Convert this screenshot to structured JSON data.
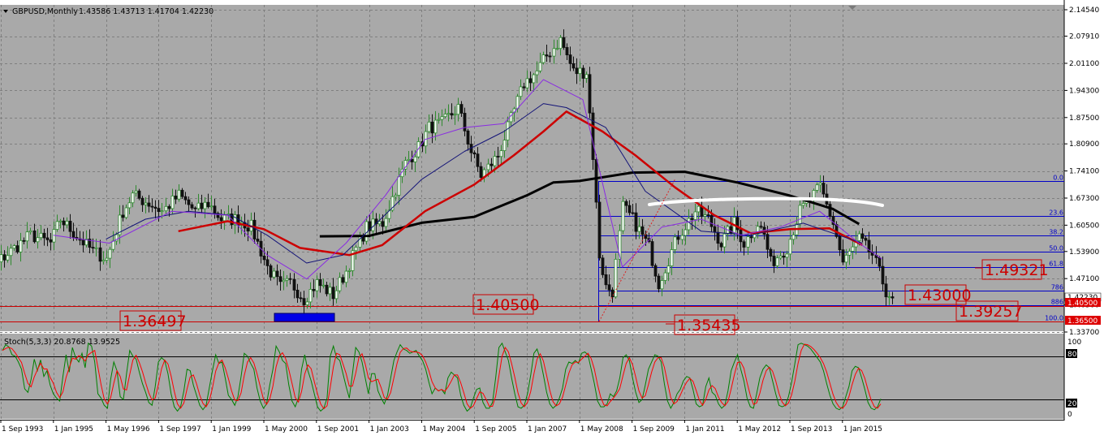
{
  "header": {
    "symbol": "GBPUSD,Monthly",
    "ohlc": "1.43586 1.43713 1.41704 1.42230",
    "stoch_label": "Stoch(5,3,3) 20.8768 13.9525"
  },
  "colors": {
    "background": "#a9a9a9",
    "grid": "#7f7f7f",
    "bull_candle": "#2f8a2f",
    "bear_candle": "#111111",
    "fib_line": "#0000c8",
    "ma_black": "#000000",
    "ma_red": "#cc0000",
    "ma_navy": "#141478",
    "ma_violet": "#8a2be2",
    "support_line": "#cc0000",
    "stoch_main": "#008000",
    "stoch_signal": "#ff0000"
  },
  "chart_data": [
    {
      "type": "candlestick",
      "symbol": "GBPUSD",
      "timeframe": "Monthly",
      "ylim": [
        1.337,
        2.1454
      ],
      "price_ticks": [
        "2.14540",
        "2.07910",
        "2.01100",
        "1.94300",
        "1.87500",
        "1.80900",
        "1.74100",
        "1.67300",
        "1.60500",
        "1.53900",
        "1.47100",
        "1.40500",
        "1.33700"
      ],
      "x_ticks": [
        "1 Sep 1993",
        "1 Jan 1995",
        "1 May 1996",
        "1 Sep 1997",
        "1 Jan 1999",
        "1 May 2000",
        "1 Sep 2001",
        "1 Jan 2003",
        "1 May 2004",
        "1 Sep 2005",
        "1 Jan 2007",
        "1 May 2008",
        "1 Sep 2009",
        "1 Jan 2011",
        "1 May 2012",
        "1 Sep 2013",
        "1 Jan 2015"
      ],
      "current_price": "1.42230",
      "price_tags": [
        "1.40500",
        "1.36500"
      ],
      "fib_levels": [
        {
          "label": "0.0",
          "price": 1.716
        },
        {
          "label": "23.6",
          "price": 1.6285
        },
        {
          "label": "38.2",
          "price": 1.5795
        },
        {
          "label": "50.0",
          "price": 1.5395
        },
        {
          "label": "61.8",
          "price": 1.4995
        },
        {
          "label": "786",
          "price": 1.4402
        },
        {
          "label": "886",
          "price": 1.4045
        },
        {
          "label": "100.0",
          "price": 1.3625
        }
      ],
      "annotations": [
        "1.49321",
        "1.43000",
        "1.39257",
        "1.35435",
        "1.40500",
        "1.36497"
      ],
      "support_lines": [
        1.4016,
        1.3638
      ],
      "series": [
        {
          "kind": "ohlc",
          "anchors_date_price": [
            [
              "1992-09",
              1.48
            ],
            [
              "1992-12",
              1.52
            ],
            [
              "1993-03",
              1.45
            ],
            [
              "1993-09",
              1.52
            ],
            [
              "1994-06",
              1.58
            ],
            [
              "1994-12",
              1.56
            ],
            [
              "1995-03",
              1.62
            ],
            [
              "1995-09",
              1.57
            ],
            [
              "1996-01",
              1.54
            ],
            [
              "1996-05",
              1.52
            ],
            [
              "1996-10",
              1.64
            ],
            [
              "1997-01",
              1.68
            ],
            [
              "1997-06",
              1.66
            ],
            [
              "1997-10",
              1.64
            ],
            [
              "1998-03",
              1.68
            ],
            [
              "1998-08",
              1.64
            ],
            [
              "1998-12",
              1.66
            ],
            [
              "1999-04",
              1.62
            ],
            [
              "1999-09",
              1.62
            ],
            [
              "2000-01",
              1.6
            ],
            [
              "2000-06",
              1.5
            ],
            [
              "2000-10",
              1.45
            ],
            [
              "2001-01",
              1.46
            ],
            [
              "2001-05",
              1.42
            ],
            [
              "2001-09",
              1.46
            ],
            [
              "2002-02",
              1.43
            ],
            [
              "2002-06",
              1.49
            ],
            [
              "2002-12",
              1.6
            ],
            [
              "2003-05",
              1.61
            ],
            [
              "2003-12",
              1.76
            ],
            [
              "2004-04",
              1.8
            ],
            [
              "2004-07",
              1.85
            ],
            [
              "2004-11",
              1.86
            ],
            [
              "2005-04",
              1.9
            ],
            [
              "2005-08",
              1.79
            ],
            [
              "2005-11",
              1.73
            ],
            [
              "2006-04",
              1.78
            ],
            [
              "2006-08",
              1.87
            ],
            [
              "2006-12",
              1.96
            ],
            [
              "2007-04",
              1.99
            ],
            [
              "2007-07",
              2.03
            ],
            [
              "2007-11",
              2.07
            ],
            [
              "2008-03",
              1.99
            ],
            [
              "2008-07",
              1.99
            ],
            [
              "2008-09",
              1.78
            ],
            [
              "2008-11",
              1.53
            ],
            [
              "2009-01",
              1.45
            ],
            [
              "2009-03",
              1.44
            ],
            [
              "2009-06",
              1.65
            ],
            [
              "2009-09",
              1.62
            ],
            [
              "2010-02",
              1.55
            ],
            [
              "2010-05",
              1.46
            ],
            [
              "2010-11",
              1.58
            ],
            [
              "2011-04",
              1.64
            ],
            [
              "2011-08",
              1.62
            ],
            [
              "2011-12",
              1.56
            ],
            [
              "2012-04",
              1.61
            ],
            [
              "2012-07",
              1.56
            ],
            [
              "2012-11",
              1.61
            ],
            [
              "2013-01",
              1.58
            ],
            [
              "2013-03",
              1.51
            ],
            [
              "2013-08",
              1.55
            ],
            [
              "2013-12",
              1.64
            ],
            [
              "2014-06",
              1.7
            ],
            [
              "2014-10",
              1.61
            ],
            [
              "2015-01",
              1.51
            ],
            [
              "2015-06",
              1.57
            ],
            [
              "2015-10",
              1.53
            ],
            [
              "2016-02",
              1.44
            ],
            [
              "2016-04",
              1.422
            ]
          ]
        },
        {
          "kind": "ma",
          "color": "#000000",
          "points_date_price": [
            [
              "2001-10",
              1.577
            ],
            [
              "2003-01",
              1.578
            ],
            [
              "2004-05",
              1.611
            ],
            [
              "2005-09",
              1.626
            ],
            [
              "2007-01",
              1.68
            ],
            [
              "2007-09",
              1.712
            ],
            [
              "2008-05",
              1.716
            ],
            [
              "2009-09",
              1.737
            ],
            [
              "2011-01",
              1.739
            ],
            [
              "2012-05",
              1.712
            ],
            [
              "2013-09",
              1.679
            ],
            [
              "2014-10",
              1.646
            ],
            [
              "2015-06",
              1.608
            ]
          ]
        },
        {
          "kind": "ma",
          "color": "#cc0000",
          "points_date_price": [
            [
              "1998-03",
              1.59
            ],
            [
              "1999-06",
              1.615
            ],
            [
              "2000-05",
              1.595
            ],
            [
              "2001-04",
              1.548
            ],
            [
              "2002-07",
              1.53
            ],
            [
              "2003-05",
              1.555
            ],
            [
              "2004-06",
              1.64
            ],
            [
              "2005-09",
              1.707
            ],
            [
              "2006-09",
              1.78
            ],
            [
              "2007-06",
              1.84
            ],
            [
              "2008-01",
              1.89
            ],
            [
              "2008-12",
              1.84
            ],
            [
              "2009-10",
              1.78
            ],
            [
              "2010-10",
              1.7
            ],
            [
              "2011-10",
              1.63
            ],
            [
              "2012-09",
              1.585
            ],
            [
              "2013-09",
              1.595
            ],
            [
              "2014-09",
              1.597
            ],
            [
              "2015-07",
              1.555
            ]
          ]
        },
        {
          "kind": "ma",
          "color": "#141478",
          "points_date_price": [
            [
              "1996-05",
              1.57
            ],
            [
              "1997-05",
              1.62
            ],
            [
              "1998-06",
              1.64
            ],
            [
              "1999-07",
              1.63
            ],
            [
              "2000-06",
              1.58
            ],
            [
              "2001-06",
              1.51
            ],
            [
              "2002-05",
              1.53
            ],
            [
              "2003-02",
              1.6
            ],
            [
              "2004-05",
              1.72
            ],
            [
              "2005-06",
              1.79
            ],
            [
              "2006-06",
              1.84
            ],
            [
              "2007-06",
              1.91
            ],
            [
              "2008-01",
              1.9
            ],
            [
              "2009-01",
              1.85
            ],
            [
              "2010-01",
              1.69
            ],
            [
              "2011-06",
              1.59
            ],
            [
              "2012-09",
              1.58
            ],
            [
              "2014-01",
              1.61
            ],
            [
              "2015-07",
              1.56
            ]
          ]
        },
        {
          "kind": "ma",
          "color": "#8a2be2",
          "points_date_price": [
            [
              "1995-01",
              1.58
            ],
            [
              "1996-06",
              1.56
            ],
            [
              "1998-01",
              1.64
            ],
            [
              "1999-06",
              1.63
            ],
            [
              "2000-06",
              1.53
            ],
            [
              "2001-06",
              1.47
            ],
            [
              "2002-06",
              1.56
            ],
            [
              "2003-06",
              1.68
            ],
            [
              "2004-06",
              1.82
            ],
            [
              "2005-06",
              1.85
            ],
            [
              "2006-06",
              1.86
            ],
            [
              "2007-06",
              1.97
            ],
            [
              "2008-06",
              1.92
            ],
            [
              "2009-06",
              1.5
            ],
            [
              "2010-06",
              1.6
            ],
            [
              "2011-06",
              1.62
            ],
            [
              "2012-06",
              1.58
            ],
            [
              "2013-06",
              1.6
            ],
            [
              "2014-06",
              1.64
            ],
            [
              "2015-06",
              1.56
            ],
            [
              "2016-01",
              1.52
            ]
          ]
        }
      ]
    },
    {
      "type": "line",
      "name": "Stoch(5,3,3)",
      "ylim": [
        0,
        100
      ],
      "levels": [
        80,
        20
      ],
      "y_ticks": [
        "100",
        "80",
        "20",
        "0"
      ],
      "main_value": 20.8768,
      "signal_value": 13.9525,
      "main_series": [
        88,
        96,
        93,
        82,
        80,
        72,
        62,
        35,
        30,
        48,
        76,
        60,
        75,
        52,
        60,
        40,
        28,
        22,
        18,
        52,
        82,
        58,
        92,
        78,
        72,
        84,
        64,
        98,
        94,
        72,
        28,
        22,
        12,
        8,
        48,
        72,
        60,
        24,
        20,
        56,
        88,
        80,
        76,
        58,
        42,
        30,
        16,
        12,
        38,
        72,
        78,
        74,
        56,
        28,
        10,
        4,
        10,
        32,
        62,
        60,
        40,
        26,
        12,
        6,
        12,
        36,
        60,
        82,
        70,
        72,
        50,
        26,
        20,
        12,
        24,
        52,
        84,
        80,
        70,
        62,
        36,
        18,
        8,
        14,
        40,
        62,
        94,
        86,
        74,
        70,
        40,
        18,
        10,
        22,
        62,
        82,
        60,
        46,
        28,
        10,
        4,
        8,
        22,
        80,
        94,
        78,
        74,
        56,
        38,
        22,
        56,
        92,
        86,
        72,
        50,
        28,
        56,
        56,
        32,
        22,
        14,
        26,
        50,
        74,
        86,
        96,
        90,
        88,
        84,
        86,
        88,
        80,
        74,
        62,
        44,
        28,
        36,
        32,
        34,
        28,
        50,
        58,
        54,
        50,
        26,
        12,
        4,
        8,
        22,
        34,
        36,
        16,
        8,
        8,
        16,
        50,
        92,
        98,
        86,
        74,
        50,
        28,
        10,
        8,
        12,
        28,
        54,
        84,
        90,
        76,
        54,
        30,
        14,
        8,
        12,
        22,
        36,
        62,
        72,
        70,
        74,
        70,
        84,
        86,
        82,
        62,
        42,
        18,
        10,
        10,
        14,
        28,
        24,
        32,
        50,
        78,
        82,
        74,
        50,
        30,
        16,
        20,
        40,
        62,
        72,
        82,
        80,
        72,
        42,
        18,
        8,
        16,
        28,
        34,
        46,
        52,
        50,
        34,
        14,
        10,
        12,
        38,
        50,
        30,
        26,
        14,
        8,
        12,
        32,
        60,
        72,
        82,
        62,
        46,
        22,
        10,
        8,
        28,
        50,
        62,
        68,
        64,
        46,
        28,
        12,
        10,
        12,
        24,
        44,
        70,
        96,
        98,
        96,
        94,
        90,
        84,
        78,
        72,
        60,
        42,
        26,
        14,
        8,
        6,
        10,
        24,
        38,
        60,
        66,
        64,
        50,
        34,
        16,
        8,
        6,
        10,
        21
      ]
    }
  ]
}
